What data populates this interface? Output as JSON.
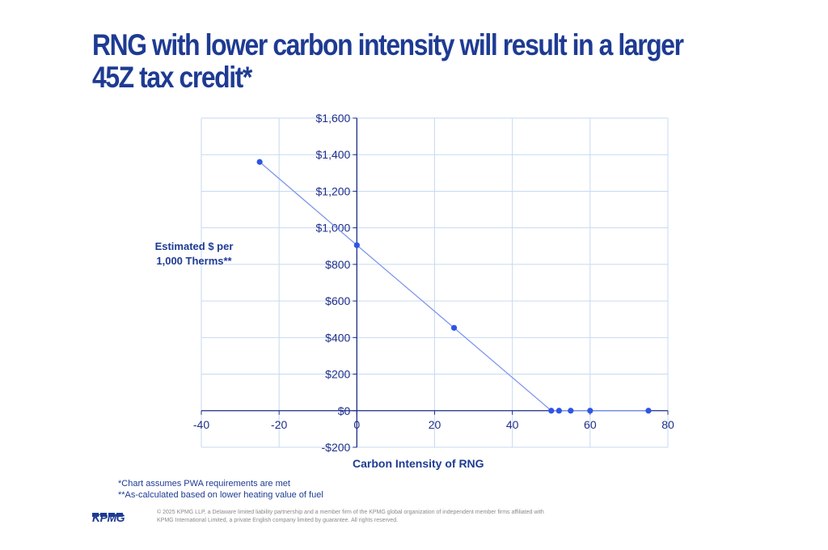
{
  "slide": {
    "title": "RNG with lower carbon intensity will result in a larger 45Z tax credit*",
    "notes": [
      "*Chart assumes PWA requirements are met",
      "**As-calculated based on lower heating value of fuel"
    ],
    "logo_text": "KPMG",
    "copyright": "© 2025 KPMG LLP, a Delaware limited liability partnership and a member firm of the KPMG global organization of independent member firms affiliated with KPMG International Limited, a private English company limited by guarantee. All rights reserved."
  },
  "colors": {
    "title": "#1e3b93",
    "series": "#2f55e6",
    "line": "#7d95f0",
    "grid": "#c6daf2",
    "axis": "#1e2f8a"
  },
  "chart_data": {
    "type": "scatter",
    "title": "",
    "xlabel": "Carbon Intensity of RNG",
    "ylabel_lines": [
      "Estimated $ per",
      "1,000 Therms**"
    ],
    "xlim": [
      -40,
      80
    ],
    "ylim": [
      -200,
      1600
    ],
    "x_ticks": [
      -40,
      -20,
      0,
      20,
      40,
      60,
      80
    ],
    "y_ticks": [
      -200,
      0,
      200,
      400,
      600,
      800,
      1000,
      1200,
      1400,
      1600
    ],
    "x_tick_labels": [
      "-40",
      "-20",
      "0",
      "20",
      "40",
      "60",
      "80"
    ],
    "y_tick_labels": [
      "-$200",
      "$0",
      "$200",
      "$400",
      "$600",
      "$800",
      "$1,000",
      "$1,200",
      "$1,400",
      "$1,600"
    ],
    "grid": true,
    "legend": "none",
    "series": [
      {
        "points": [
          {
            "x": -25,
            "y": 1360
          },
          {
            "x": 0,
            "y": 905
          },
          {
            "x": 25,
            "y": 453
          },
          {
            "x": 50,
            "y": 0
          },
          {
            "x": 52,
            "y": 0
          },
          {
            "x": 55,
            "y": 0
          },
          {
            "x": 60,
            "y": 0
          },
          {
            "x": 75,
            "y": 0
          }
        ]
      }
    ]
  }
}
